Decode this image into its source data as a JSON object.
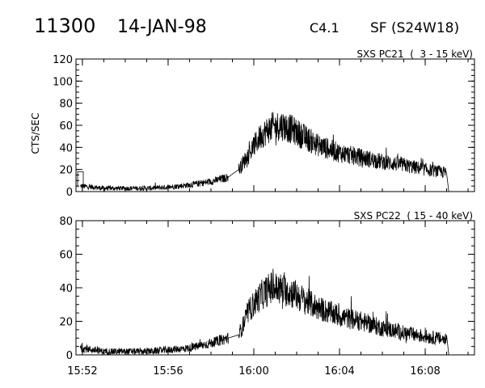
{
  "header": {
    "event_id": "11300",
    "date": "14-JAN-98",
    "goes_class": "C4.1",
    "flare_info": "SF (S24W18)"
  },
  "chart_data": [
    {
      "type": "line",
      "title": "SXS PC21  (  3 - 15 keV)",
      "ylabel": "CTS/SEC",
      "xlabel": "",
      "xlim_minutes": [
        15.7,
        1.3
      ],
      "xlim": [
        "15:51.7",
        "16:10.3"
      ],
      "ylim": [
        0,
        120
      ],
      "yticks": [
        0,
        20,
        40,
        60,
        80,
        100,
        120
      ],
      "xticks": [
        "15:52",
        "15:56",
        "16:00",
        "16:04",
        "16:08"
      ],
      "xtick_labels_visible": false,
      "grid": false,
      "series": [
        {
          "x": [
            "15:51.9",
            "15:52.5",
            "15:53.0",
            "15:54.0",
            "15:55.0",
            "15:56.0",
            "15:57.0",
            "15:58.0",
            "15:58.8",
            "15:59.3",
            "15:59.8",
            "16:00.3",
            "16:00.8",
            "16:01.3",
            "16:01.8",
            "16:02.3",
            "16:03.0",
            "16:04.0",
            "16:05.0",
            "16:06.0",
            "16:07.0",
            "16:08.0",
            "16:09.0",
            "16:09.1"
          ],
          "y": [
            5,
            4,
            3,
            3,
            3,
            4,
            6,
            9,
            13,
            20,
            35,
            50,
            58,
            60,
            56,
            50,
            42,
            35,
            31,
            27,
            24,
            20,
            17,
            0
          ]
        }
      ]
    },
    {
      "type": "line",
      "title": "SXS PC22  ( 15 - 40 keV)",
      "ylabel": "",
      "xlabel": "",
      "xlim": [
        "15:51.7",
        "16:10.3"
      ],
      "ylim": [
        0,
        80
      ],
      "yticks": [
        0,
        20,
        40,
        60,
        80
      ],
      "xticks": [
        "15:52",
        "15:56",
        "16:00",
        "16:04",
        "16:08"
      ],
      "xtick_labels_visible": true,
      "grid": false,
      "series": [
        {
          "x": [
            "15:51.9",
            "15:52.5",
            "15:53.0",
            "15:54.0",
            "15:55.0",
            "15:56.0",
            "15:57.0",
            "15:58.0",
            "15:58.8",
            "15:59.3",
            "15:59.8",
            "16:00.3",
            "16:00.8",
            "16:01.3",
            "16:01.8",
            "16:02.3",
            "16:03.0",
            "16:04.0",
            "16:05.0",
            "16:06.0",
            "16:07.0",
            "16:08.0",
            "16:09.0",
            "16:09.1"
          ],
          "y": [
            4,
            3,
            2,
            2,
            2,
            3,
            4,
            7,
            10,
            12,
            27,
            35,
            40,
            39,
            37,
            33,
            28,
            23,
            20,
            16,
            13,
            11,
            9,
            0
          ]
        }
      ]
    }
  ]
}
